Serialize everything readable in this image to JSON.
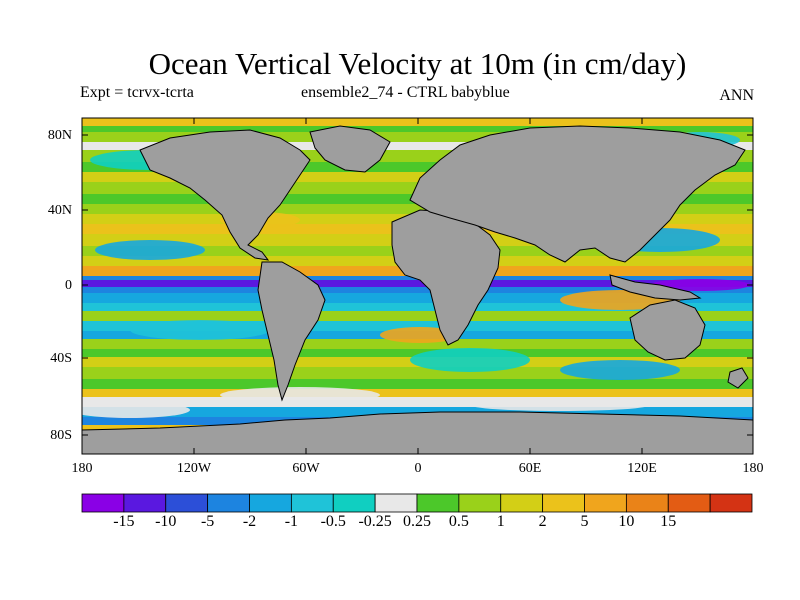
{
  "title": "Ocean Vertical Velocity at 10m (in cm/day)",
  "subtitle_left": "Expt = tcrvx-tcrta",
  "subtitle_center": "ensemble2_74 - CTRL babyblue",
  "subtitle_right": "ANN",
  "lat_ticks": [
    "80N",
    "40N",
    "0",
    "40S",
    "80S"
  ],
  "lon_ticks": [
    "180",
    "120W",
    "60W",
    "0",
    "60E",
    "120E",
    "180"
  ],
  "colorbar": {
    "colors": [
      "#8a00e6",
      "#5a18e0",
      "#2c4fd8",
      "#1d84e0",
      "#16a7df",
      "#1fc3d8",
      "#10cfc1",
      "#e8e8e8",
      "#4cc82a",
      "#9ad11a",
      "#d3cf16",
      "#ebc21b",
      "#f0a51d",
      "#ea8318",
      "#e35c14",
      "#d43314"
    ],
    "labels": [
      "-15",
      "-10",
      "-5",
      "-2",
      "-1",
      "-0.5",
      "-0.25",
      "0.25",
      "0.5",
      "1",
      "2",
      "5",
      "10",
      "15"
    ]
  },
  "colors": {
    "land": "#9e9e9e",
    "coast": "#000000"
  }
}
